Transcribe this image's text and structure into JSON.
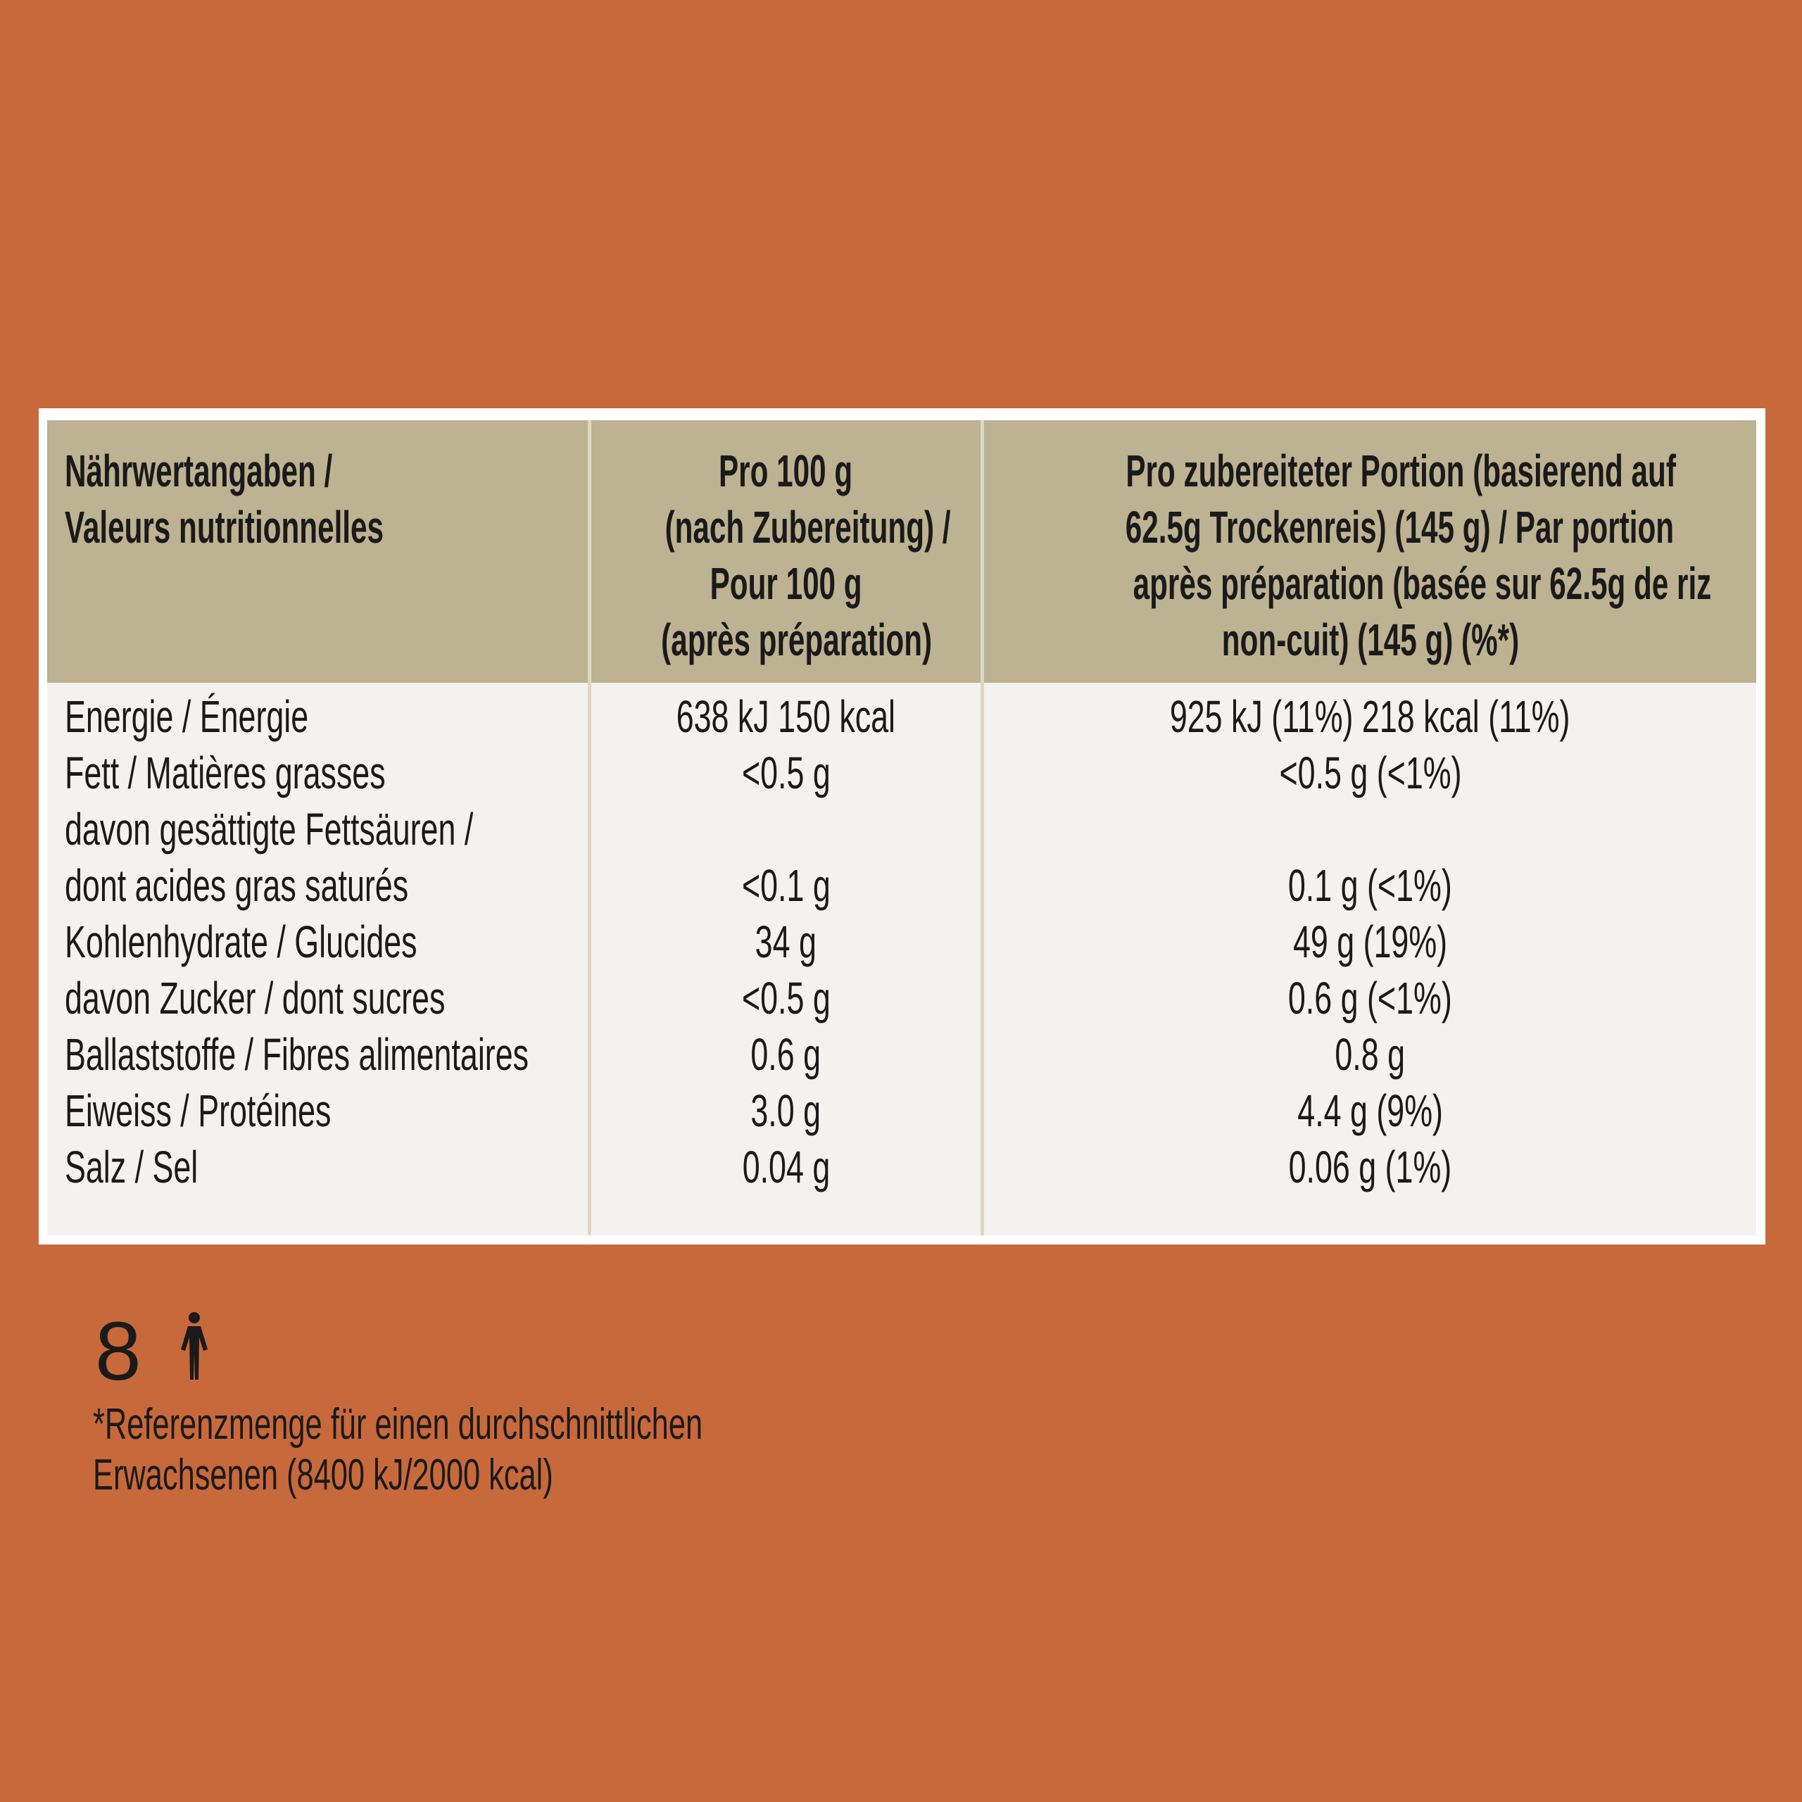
{
  "table": {
    "headers": [
      [
        "Nährwertangaben /",
        "Valeurs nutritionnelles"
      ],
      [
        "Pro 100 g",
        "(nach Zubereitung) /",
        "Pour 100 g",
        "(après préparation)"
      ],
      [
        "Pro zubereiteter Portion (basierend auf",
        "62.5g Trockenreis) (145 g) / Par portion",
        "après préparation (basée sur 62.5g de riz",
        "non-cuit) (145 g) (%*)"
      ]
    ],
    "rows": [
      {
        "label": [
          "Energie / Énergie"
        ],
        "per_100g": "638 kJ 150 kcal",
        "per_portion": "925 kJ (11%) 218 kcal (11%)"
      },
      {
        "label": [
          "Fett / Matières grasses"
        ],
        "per_100g": "<0.5 g",
        "per_portion": "<0.5 g (<1%)"
      },
      {
        "label": [
          "davon gesättigte Fettsäuren /",
          "dont acides gras saturés"
        ],
        "per_100g": "<0.1 g",
        "per_portion": "0.1 g (<1%)"
      },
      {
        "label": [
          "Kohlenhydrate / Glucides"
        ],
        "per_100g": "34 g",
        "per_portion": "49 g (19%)"
      },
      {
        "label": [
          "davon Zucker / dont sucres"
        ],
        "per_100g": "<0.5 g",
        "per_portion": "0.6 g (<1%)"
      },
      {
        "label": [
          "Ballaststoffe / Fibres alimentaires"
        ],
        "per_100g": "0.6 g",
        "per_portion": "0.8 g"
      },
      {
        "label": [
          "Eiweiss / Protéines"
        ],
        "per_100g": "3.0 g",
        "per_portion": "4.4 g (9%)"
      },
      {
        "label": [
          "Salz / Sel"
        ],
        "per_100g": "0.04 g",
        "per_portion": "0.06 g (1%)"
      }
    ]
  },
  "portions": "8",
  "footnote": [
    "*Referenzmenge für einen durchschnittlichen",
    "Erwachsenen (8400 kJ/2000 kcal)"
  ]
}
